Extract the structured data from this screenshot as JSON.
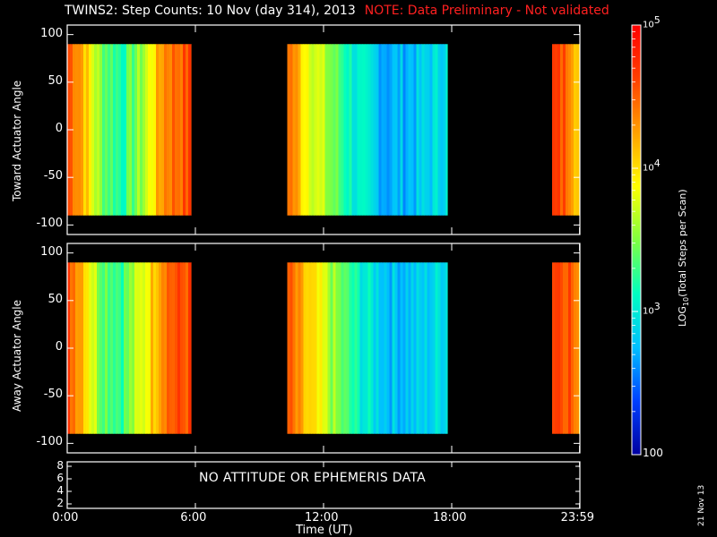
{
  "title": {
    "main": "TWINS2: Step Counts: 10 Nov (day 314), 2013",
    "note": "NOTE: Data Preliminary - Not validated",
    "note_color": "#ff2020"
  },
  "status_panel": {
    "message": "NO ATTITUDE OR EPHEMERIS DATA",
    "y_ticks": [
      "8",
      "6",
      "4",
      "2"
    ]
  },
  "x_axis": {
    "label": "Time (UT)",
    "tick_labels": [
      "0:00",
      "6:00",
      "12:00",
      "18:00",
      "23:59"
    ],
    "tick_hours": [
      0,
      6,
      12,
      18,
      23.983
    ],
    "range_hours": [
      0,
      24
    ]
  },
  "colorbar": {
    "label": "LOG10(Total Steps per Scan)",
    "tick_labels": [
      "10^5",
      "10^4",
      "10^3",
      "100"
    ],
    "log_range": [
      2,
      5
    ],
    "colors": [
      "#0000a0",
      "#0040ff",
      "#00c0ff",
      "#00ffc0",
      "#80ff40",
      "#ffff00",
      "#ffa000",
      "#ff4000",
      "#ff0000"
    ]
  },
  "date_stamp": "21 Nov 13",
  "chart_data": [
    {
      "type": "heatmap",
      "title": "",
      "ylabel": "Toward Actuator Angle",
      "xlabel": "",
      "ylim": [
        -110,
        110
      ],
      "y_ticks": [
        100,
        50,
        0,
        -50,
        -100
      ],
      "data_angle_range": [
        -90,
        90
      ],
      "segments": [
        {
          "start_hour": 0.0,
          "end_hour": 5.8,
          "log_counts_profile": [
            {
              "hour": 0.0,
              "log": 4.6
            },
            {
              "hour": 0.6,
              "log": 4.3
            },
            {
              "hour": 1.0,
              "log": 3.9
            },
            {
              "hour": 1.5,
              "log": 3.5
            },
            {
              "hour": 2.5,
              "log": 3.2
            },
            {
              "hour": 3.5,
              "log": 3.6
            },
            {
              "hour": 4.5,
              "log": 4.4
            },
            {
              "hour": 5.8,
              "log": 4.6
            }
          ]
        },
        {
          "start_hour": 10.3,
          "end_hour": 17.8,
          "log_counts_profile": [
            {
              "hour": 10.3,
              "log": 4.5
            },
            {
              "hour": 11.0,
              "log": 4.0
            },
            {
              "hour": 12.0,
              "log": 3.6
            },
            {
              "hour": 13.5,
              "log": 3.0
            },
            {
              "hour": 15.0,
              "log": 2.7
            },
            {
              "hour": 16.5,
              "log": 2.8
            },
            {
              "hour": 17.8,
              "log": 3.0
            }
          ]
        },
        {
          "start_hour": 22.7,
          "end_hour": 23.983,
          "log_counts_profile": [
            {
              "hour": 22.7,
              "log": 4.6
            },
            {
              "hour": 23.5,
              "log": 4.5
            },
            {
              "hour": 23.983,
              "log": 3.9
            }
          ]
        }
      ]
    },
    {
      "type": "heatmap",
      "title": "",
      "ylabel": "Away Actuator Angle",
      "xlabel": "Time (UT)",
      "ylim": [
        -110,
        110
      ],
      "y_ticks": [
        100,
        50,
        0,
        -50,
        -100
      ],
      "data_angle_range": [
        -90,
        90
      ],
      "segments": [
        {
          "start_hour": 0.0,
          "end_hour": 5.8,
          "log_counts_profile": [
            {
              "hour": 0.0,
              "log": 4.6
            },
            {
              "hour": 0.6,
              "log": 4.3
            },
            {
              "hour": 1.0,
              "log": 3.9
            },
            {
              "hour": 1.5,
              "log": 3.5
            },
            {
              "hour": 2.5,
              "log": 3.3
            },
            {
              "hour": 3.5,
              "log": 3.8
            },
            {
              "hour": 4.5,
              "log": 4.5
            },
            {
              "hour": 5.8,
              "log": 4.6
            }
          ]
        },
        {
          "start_hour": 10.3,
          "end_hour": 17.8,
          "log_counts_profile": [
            {
              "hour": 10.3,
              "log": 4.5
            },
            {
              "hour": 11.0,
              "log": 4.1
            },
            {
              "hour": 12.0,
              "log": 3.7
            },
            {
              "hour": 13.5,
              "log": 3.1
            },
            {
              "hour": 15.0,
              "log": 2.8
            },
            {
              "hour": 16.5,
              "log": 2.8
            },
            {
              "hour": 17.8,
              "log": 3.0
            }
          ]
        },
        {
          "start_hour": 22.7,
          "end_hour": 23.983,
          "log_counts_profile": [
            {
              "hour": 22.7,
              "log": 4.7
            },
            {
              "hour": 23.5,
              "log": 4.6
            },
            {
              "hour": 23.983,
              "log": 4.0
            }
          ]
        }
      ]
    }
  ]
}
